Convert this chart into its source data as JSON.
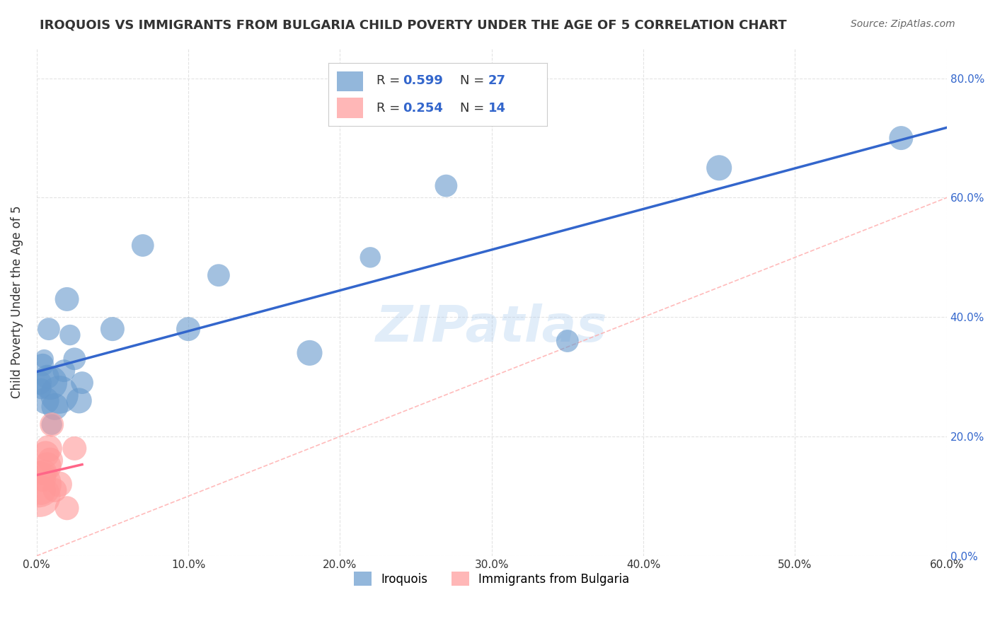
{
  "title": "IROQUOIS VS IMMIGRANTS FROM BULGARIA CHILD POVERTY UNDER THE AGE OF 5 CORRELATION CHART",
  "source": "Source: ZipAtlas.com",
  "xlabel": "",
  "ylabel": "Child Poverty Under the Age of 5",
  "xlim": [
    0,
    0.6
  ],
  "ylim": [
    0,
    0.85
  ],
  "xticks": [
    0.0,
    0.1,
    0.2,
    0.3,
    0.4,
    0.5,
    0.6
  ],
  "xticklabels": [
    "0.0%",
    "10.0%",
    "20.0%",
    "30.0%",
    "40.0%",
    "50.0%",
    "60.0%"
  ],
  "yticks": [
    0.0,
    0.2,
    0.4,
    0.6,
    0.8
  ],
  "yticklabels_right": [
    "0.0%",
    "20.0%",
    "40.0%",
    "60.0%",
    "80.0%"
  ],
  "iroquois_color": "#6699CC",
  "bulgaria_color": "#FF9999",
  "iroquois_label": "Iroquois",
  "bulgaria_label": "Immigrants from Bulgaria",
  "R_iroquois": 0.599,
  "N_iroquois": 27,
  "R_bulgaria": 0.254,
  "N_bulgaria": 14,
  "iroquois_x": [
    0.002,
    0.003,
    0.004,
    0.005,
    0.006,
    0.007,
    0.008,
    0.009,
    0.01,
    0.012,
    0.015,
    0.018,
    0.02,
    0.022,
    0.025,
    0.028,
    0.03,
    0.05,
    0.07,
    0.1,
    0.12,
    0.18,
    0.22,
    0.27,
    0.35,
    0.45,
    0.57
  ],
  "iroquois_y": [
    0.29,
    0.28,
    0.32,
    0.33,
    0.26,
    0.3,
    0.38,
    0.29,
    0.22,
    0.25,
    0.27,
    0.31,
    0.43,
    0.37,
    0.33,
    0.26,
    0.29,
    0.38,
    0.52,
    0.38,
    0.47,
    0.34,
    0.5,
    0.62,
    0.36,
    0.65,
    0.7
  ],
  "iroquois_sizes": [
    40,
    30,
    35,
    25,
    50,
    40,
    35,
    80,
    30,
    50,
    100,
    35,
    40,
    30,
    35,
    45,
    35,
    40,
    35,
    40,
    35,
    45,
    30,
    35,
    35,
    45,
    40
  ],
  "bulgaria_x": [
    0.001,
    0.002,
    0.003,
    0.004,
    0.005,
    0.006,
    0.007,
    0.008,
    0.009,
    0.01,
    0.012,
    0.015,
    0.02,
    0.025
  ],
  "bulgaria_y": [
    0.12,
    0.1,
    0.11,
    0.13,
    0.14,
    0.17,
    0.15,
    0.18,
    0.16,
    0.22,
    0.11,
    0.12,
    0.08,
    0.18
  ],
  "bulgaria_sizes": [
    150,
    120,
    60,
    50,
    45,
    50,
    55,
    50,
    45,
    40,
    40,
    45,
    40,
    40
  ],
  "iroquois_line_color": "#3366CC",
  "bulgaria_line_color": "#FF6688",
  "diag_line_color": "#FFAAAA",
  "watermark": "ZIPatlas",
  "background_color": "#FFFFFF",
  "grid_color": "#DDDDDD"
}
